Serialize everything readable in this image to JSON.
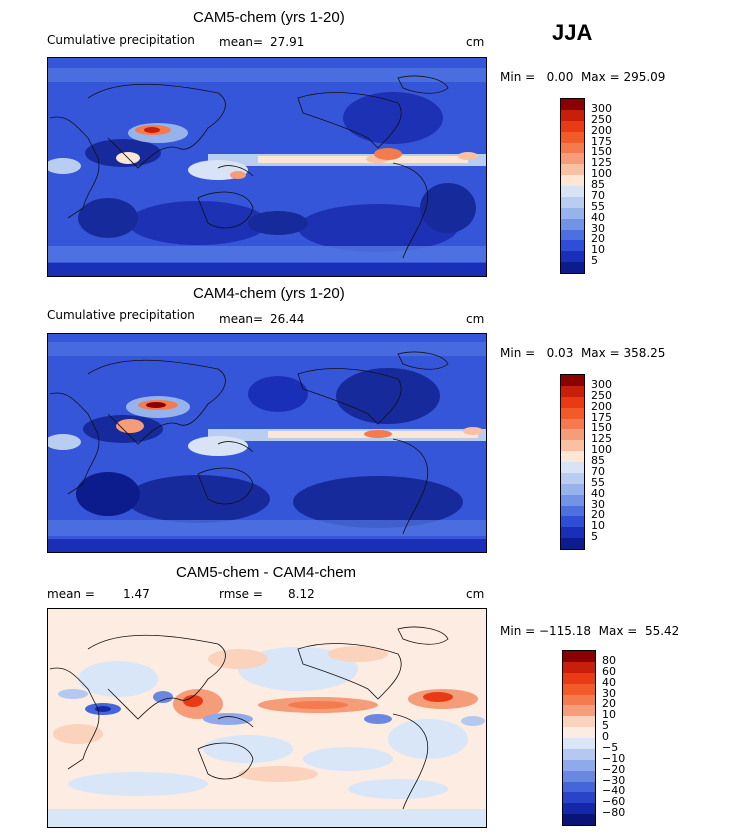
{
  "season": "JJA",
  "panels": [
    {
      "title": "CAM5-chem (yrs 1-20)",
      "subtitle": "Cumulative precipitation",
      "stat1_label": "mean=",
      "stat1_value": "27.91",
      "units": "cm",
      "range_text": "Min =   0.00  Max = 295.09",
      "colorbar": {
        "labels": [
          "300",
          "250",
          "200",
          "175",
          "150",
          "125",
          "100",
          "85",
          "70",
          "55",
          "40",
          "30",
          "20",
          "10",
          "5"
        ],
        "colors": [
          "#8b0000",
          "#c81e0a",
          "#e83a14",
          "#f25a2a",
          "#f47b4e",
          "#f59c78",
          "#f9c0a2",
          "#fde6d6",
          "#d8e4f6",
          "#b9cdf1",
          "#97b3ec",
          "#7293e6",
          "#4d6fe0",
          "#2f4dd6",
          "#1a2fb8",
          "#0c1c8c"
        ]
      }
    },
    {
      "title": "CAM4-chem (yrs 1-20)",
      "subtitle": "Cumulative precipitation",
      "stat1_label": "mean=",
      "stat1_value": "26.44",
      "units": "cm",
      "range_text": "Min =   0.03  Max = 358.25",
      "colorbar": {
        "labels": [
          "300",
          "250",
          "200",
          "175",
          "150",
          "125",
          "100",
          "85",
          "70",
          "55",
          "40",
          "30",
          "20",
          "10",
          "5"
        ],
        "colors": [
          "#8b0000",
          "#c81e0a",
          "#e83a14",
          "#f25a2a",
          "#f47b4e",
          "#f59c78",
          "#f9c0a2",
          "#fde6d6",
          "#d8e4f6",
          "#b9cdf1",
          "#97b3ec",
          "#7293e6",
          "#4d6fe0",
          "#2f4dd6",
          "#1a2fb8",
          "#0c1c8c"
        ]
      }
    },
    {
      "title": "CAM5-chem - CAM4-chem",
      "stat1_label": "mean =",
      "stat1_value": "1.47",
      "stat2_label": "rmse =",
      "stat2_value": "8.12",
      "units": "cm",
      "range_text": "Min = −115.18  Max =  55.42",
      "colorbar": {
        "labels": [
          "80",
          "60",
          "40",
          "30",
          "20",
          "10",
          "5",
          "0",
          "−5",
          "−10",
          "−20",
          "−30",
          "−40",
          "−60",
          "−80"
        ],
        "colors": [
          "#8b0000",
          "#c81e0a",
          "#e83a14",
          "#f25a2a",
          "#f47b4e",
          "#f59c78",
          "#fbd2bc",
          "#fdece2",
          "#d8e6f8",
          "#b4c8f0",
          "#8fa9ea",
          "#6a88e2",
          "#4566d8",
          "#2a44c8",
          "#1628a8",
          "#0a1478"
        ]
      }
    }
  ],
  "chart_data": [
    {
      "type": "heatmap",
      "title": "CAM5-chem (yrs 1-20)",
      "variable": "Cumulative precipitation",
      "units": "cm",
      "season": "JJA",
      "mean": 27.91,
      "min": 0.0,
      "max": 295.09,
      "contour_levels": [
        5,
        10,
        20,
        30,
        40,
        55,
        70,
        85,
        100,
        125,
        150,
        175,
        200,
        250,
        300
      ]
    },
    {
      "type": "heatmap",
      "title": "CAM4-chem (yrs 1-20)",
      "variable": "Cumulative precipitation",
      "units": "cm",
      "season": "JJA",
      "mean": 26.44,
      "min": 0.03,
      "max": 358.25,
      "contour_levels": [
        5,
        10,
        20,
        30,
        40,
        55,
        70,
        85,
        100,
        125,
        150,
        175,
        200,
        250,
        300
      ]
    },
    {
      "type": "heatmap",
      "title": "CAM5-chem - CAM4-chem",
      "units": "cm",
      "season": "JJA",
      "mean": 1.47,
      "rmse": 8.12,
      "min": -115.18,
      "max": 55.42,
      "contour_levels": [
        -80,
        -60,
        -40,
        -30,
        -20,
        -10,
        -5,
        0,
        5,
        10,
        20,
        30,
        40,
        60,
        80
      ]
    }
  ]
}
